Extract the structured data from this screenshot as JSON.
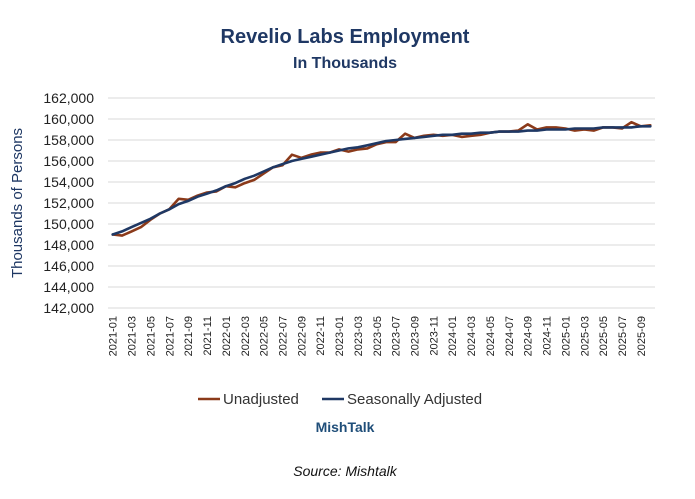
{
  "chart_data": {
    "type": "line",
    "title": "Revelio Labs Employment",
    "subtitle": "In Thousands",
    "ylabel": "Thousands of Persons",
    "xlabel": "",
    "ylim": [
      142000,
      162000
    ],
    "y_ticks": [
      "142,000",
      "144,000",
      "146,000",
      "148,000",
      "150,000",
      "152,000",
      "154,000",
      "156,000",
      "158,000",
      "160,000",
      "162,000"
    ],
    "grid": "horizontal",
    "legend_position": "bottom",
    "x": [
      "2021-01",
      "2021-02",
      "2021-03",
      "2021-04",
      "2021-05",
      "2021-06",
      "2021-07",
      "2021-08",
      "2021-09",
      "2021-10",
      "2021-11",
      "2021-12",
      "2022-01",
      "2022-02",
      "2022-03",
      "2022-04",
      "2022-05",
      "2022-06",
      "2022-07",
      "2022-08",
      "2022-09",
      "2022-10",
      "2022-11",
      "2022-12",
      "2023-01",
      "2023-02",
      "2023-03",
      "2023-04",
      "2023-05",
      "2023-06",
      "2023-07",
      "2023-08",
      "2023-09",
      "2023-10",
      "2023-11",
      "2023-12",
      "2024-01",
      "2024-02",
      "2024-03",
      "2024-04",
      "2024-05",
      "2024-06",
      "2024-07",
      "2024-08",
      "2024-09",
      "2024-10",
      "2024-11",
      "2024-12",
      "2025-01",
      "2025-02",
      "2025-03",
      "2025-04",
      "2025-05",
      "2025-06",
      "2025-07",
      "2025-08",
      "2025-09",
      "2025-10"
    ],
    "x_tick_labels": [
      "2021-01",
      "2021-03",
      "2021-05",
      "2021-07",
      "2021-09",
      "2021-11",
      "2022-01",
      "2022-03",
      "2022-05",
      "2022-07",
      "2022-09",
      "2022-11",
      "2023-01",
      "2023-03",
      "2023-05",
      "2023-07",
      "2023-09",
      "2023-11",
      "2024-01",
      "2024-03",
      "2024-05",
      "2024-07",
      "2024-09",
      "2024-11",
      "2025-01",
      "2025-03",
      "2025-05",
      "2025-07",
      "2025-09"
    ],
    "series": [
      {
        "name": "Unadjusted",
        "color": "#8b3a1a",
        "values": [
          149000,
          148900,
          149300,
          149700,
          150400,
          151000,
          151400,
          152400,
          152300,
          152700,
          153000,
          153100,
          153600,
          153500,
          153900,
          154200,
          154800,
          155400,
          155600,
          156600,
          156300,
          156600,
          156800,
          156800,
          157100,
          156900,
          157100,
          157200,
          157600,
          157800,
          157800,
          158600,
          158200,
          158400,
          158500,
          158400,
          158500,
          158300,
          158400,
          158500,
          158700,
          158800,
          158800,
          158900,
          159500,
          159000,
          159200,
          159200,
          159100,
          158900,
          159000,
          158900,
          159200,
          159200,
          159100,
          159700,
          159300,
          159400
        ]
      },
      {
        "name": "Seasonally Adjusted",
        "color": "#1f3864",
        "values": [
          149000,
          149300,
          149700,
          150100,
          150500,
          151000,
          151400,
          151900,
          152200,
          152600,
          152900,
          153200,
          153600,
          153900,
          154300,
          154600,
          155000,
          155400,
          155700,
          156000,
          156200,
          156400,
          156600,
          156800,
          157000,
          157200,
          157300,
          157500,
          157700,
          157900,
          158000,
          158100,
          158200,
          158300,
          158400,
          158500,
          158500,
          158600,
          158600,
          158700,
          158700,
          158800,
          158800,
          158800,
          158900,
          158900,
          159000,
          159000,
          159000,
          159100,
          159100,
          159100,
          159200,
          159200,
          159200,
          159200,
          159300,
          159300
        ]
      }
    ]
  },
  "footer": {
    "brand": "MishTalk",
    "source": "Source: Mishtalk"
  }
}
